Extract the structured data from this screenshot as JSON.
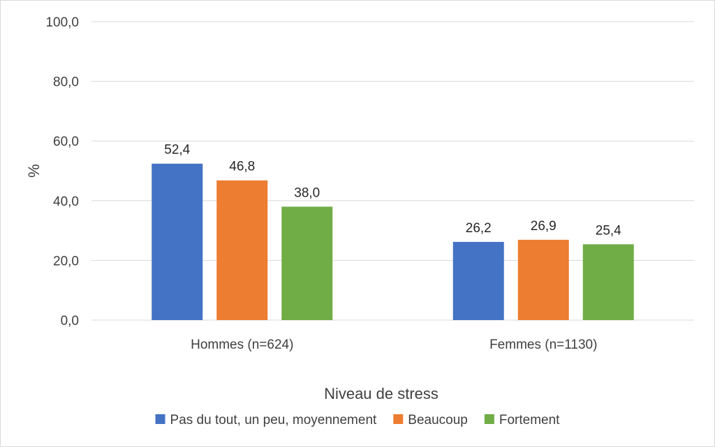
{
  "chart_data": {
    "type": "bar",
    "categories": [
      "Hommes (n=624)",
      "Femmes (n=1130)"
    ],
    "series": [
      {
        "name": "Pas du tout, un peu, moyennement",
        "values": [
          52.4,
          26.2
        ],
        "color": "#4472C4"
      },
      {
        "name": "Beaucoup",
        "values": [
          46.8,
          26.9
        ],
        "color": "#ED7D31"
      },
      {
        "name": "Fortement",
        "values": [
          38.0,
          25.4
        ],
        "color": "#70AD47"
      }
    ],
    "data_labels": [
      [
        "52,4",
        "26,2"
      ],
      [
        "46,8",
        "26,9"
      ],
      [
        "38,0",
        "25,4"
      ]
    ],
    "yticks": [
      0,
      20,
      40,
      60,
      80,
      100
    ],
    "ytick_labels": [
      "0,0",
      "20,0",
      "40,0",
      "60,0",
      "80,0",
      "100,0"
    ],
    "ylim": [
      0,
      100
    ],
    "ylabel": "%",
    "xlabel": "Niveau de stress",
    "grid": true,
    "legend_position": "bottom"
  }
}
